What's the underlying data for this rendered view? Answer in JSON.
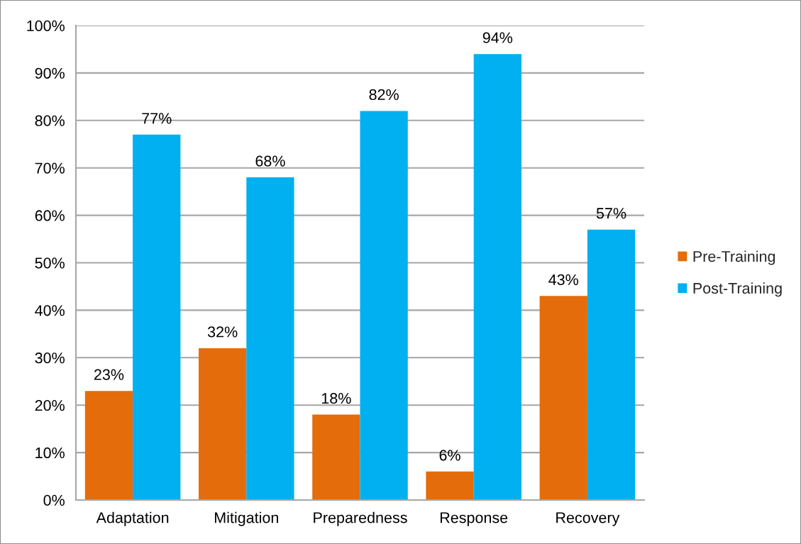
{
  "chart_data": {
    "type": "bar",
    "categories": [
      "Adaptation",
      "Mitigation",
      "Preparedness",
      "Response",
      "Recovery"
    ],
    "series": [
      {
        "name": "Pre-Training",
        "color": "#e46c0a",
        "values": [
          23,
          32,
          18,
          6,
          43
        ],
        "value_labels": [
          "23%",
          "32%",
          "18%",
          "6%",
          "43%"
        ]
      },
      {
        "name": "Post-Training",
        "color": "#00b0f0",
        "values": [
          77,
          68,
          82,
          94,
          57
        ],
        "value_labels": [
          "77%",
          "68%",
          "82%",
          "94%",
          "57%"
        ]
      }
    ],
    "ylim": [
      0,
      100
    ],
    "yticks": [
      {
        "value": 0,
        "label": "0%"
      },
      {
        "value": 10,
        "label": "10%"
      },
      {
        "value": 20,
        "label": "20%"
      },
      {
        "value": 30,
        "label": "30%"
      },
      {
        "value": 40,
        "label": "40%"
      },
      {
        "value": 50,
        "label": "50%"
      },
      {
        "value": 60,
        "label": "60%"
      },
      {
        "value": 70,
        "label": "70%"
      },
      {
        "value": 80,
        "label": "80%"
      },
      {
        "value": 90,
        "label": "90%"
      },
      {
        "value": 100,
        "label": "100%"
      }
    ],
    "grid": "y",
    "legend": "right"
  }
}
